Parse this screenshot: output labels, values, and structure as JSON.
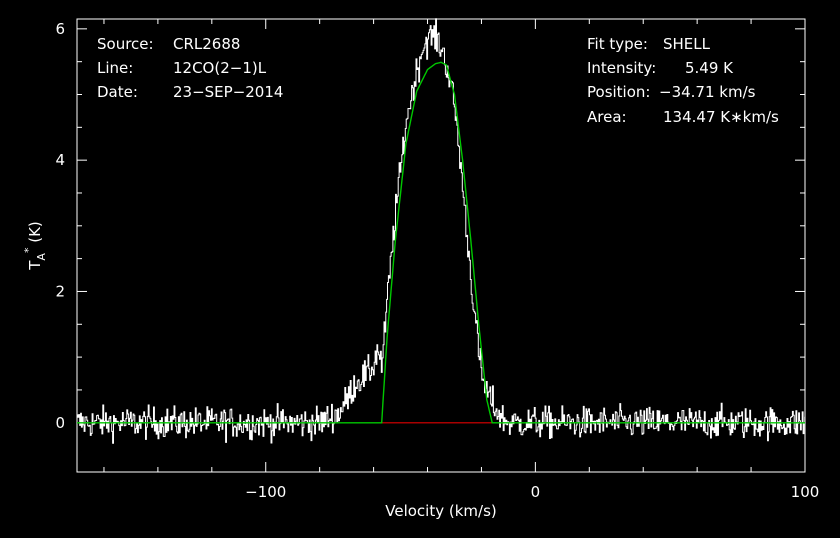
{
  "header_left": {
    "source_label": "Source:",
    "source_value": "CRL2688",
    "line_label": "Line:",
    "line_value": "12CO(2−1)L",
    "date_label": "Date:",
    "date_value": "23−SEP−2014"
  },
  "header_right": {
    "fit_label": "Fit type:",
    "fit_value": "SHELL",
    "intensity_label": "Intensity:",
    "intensity_value": "5.49 K",
    "position_label": "Position:",
    "position_value": "−34.71 km/s",
    "area_label": "Area:",
    "area_value": "134.47 K∗km/s"
  },
  "chart_data": {
    "type": "line",
    "xlabel": "Velocity (km/s)",
    "ylabel_main": "T",
    "ylabel_sub": "A",
    "ylabel_sup": "*",
    "ylabel_unit": " (K)",
    "xlim": [
      -170,
      100
    ],
    "ylim": [
      -0.75,
      6.15
    ],
    "x_ticks": [
      -100,
      0,
      100
    ],
    "x_tick_labels": [
      "−100",
      "0",
      "100"
    ],
    "y_ticks": [
      0,
      2,
      4,
      6
    ],
    "y_tick_labels": [
      "0",
      "2",
      "4",
      "6"
    ],
    "grid": false,
    "colors": {
      "spectrum": "#ffffff",
      "fit": "#00c800",
      "baseline_window": "#e00000",
      "axes": "#ffffff"
    },
    "series": [
      {
        "role": "observed spectrum (noisy, rms ~0.12 K)",
        "x": [
          -170,
          -80,
          -73,
          -70,
          -67,
          -64,
          -62,
          -60,
          -58.5,
          -57,
          -55,
          -52,
          -48,
          -45,
          -42,
          -40,
          -38,
          -36,
          -34,
          -32,
          -30,
          -28,
          -26,
          -24,
          -22,
          -20,
          -18,
          -16,
          -14,
          -12,
          -10,
          100
        ],
        "y": [
          0,
          0,
          0.15,
          0.35,
          0.6,
          0.7,
          0.75,
          0.9,
          1.15,
          0.85,
          1.9,
          3.2,
          4.6,
          5.2,
          5.7,
          5.85,
          5.9,
          5.8,
          5.6,
          5.25,
          4.8,
          4.0,
          3.1,
          2.2,
          1.4,
          0.7,
          0.45,
          0.3,
          0.15,
          0.05,
          0,
          0
        ]
      },
      {
        "role": "SHELL fit",
        "x": [
          -170,
          -57,
          -55,
          -52,
          -48,
          -44,
          -40,
          -37,
          -35,
          -33,
          -30,
          -27,
          -24,
          -21,
          -18,
          -16,
          -14,
          100
        ],
        "y": [
          0,
          0,
          1.3,
          2.75,
          4.25,
          5.05,
          5.38,
          5.47,
          5.49,
          5.45,
          5.0,
          4.0,
          2.8,
          1.5,
          0.35,
          0,
          0,
          0
        ]
      },
      {
        "role": "baseline window",
        "x": [
          -57,
          -16
        ],
        "y": [
          0,
          0
        ]
      }
    ]
  }
}
